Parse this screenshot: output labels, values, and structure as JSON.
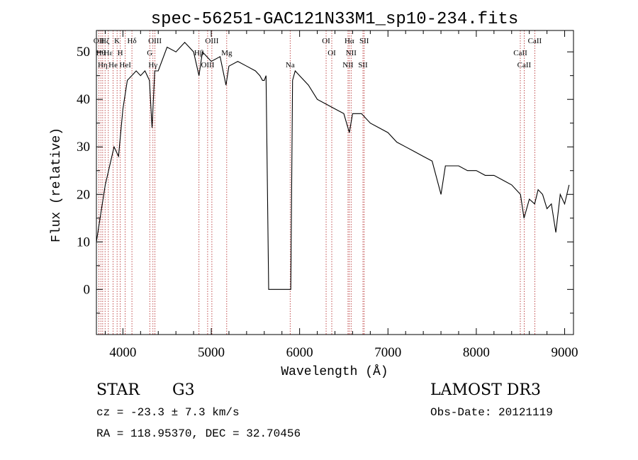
{
  "chart_data": {
    "type": "line",
    "title": "spec-56251-GAC121N33M1_sp10-234.fits",
    "xlabel": "Wavelength (Å)",
    "ylabel": "Flux (relative)",
    "xlim": [
      3700,
      9100
    ],
    "ylim": [
      -9.5,
      54.5
    ],
    "xticks": [
      4000,
      5000,
      6000,
      7000,
      8000,
      9000
    ],
    "yticks": [
      0,
      10,
      20,
      30,
      40,
      50
    ],
    "grid": false,
    "series": [
      {
        "name": "flux",
        "x": [
          3700,
          3750,
          3800,
          3850,
          3900,
          3950,
          4000,
          4050,
          4100,
          4150,
          4200,
          4250,
          4300,
          4330,
          4360,
          4400,
          4500,
          4600,
          4700,
          4800,
          4861,
          4900,
          5000,
          5100,
          5167,
          5200,
          5300,
          5400,
          5500,
          5550,
          5580,
          5600,
          5620,
          5650,
          5900,
          5920,
          5950,
          6000,
          6100,
          6200,
          6300,
          6400,
          6500,
          6563,
          6600,
          6700,
          6800,
          6900,
          7000,
          7100,
          7200,
          7300,
          7400,
          7500,
          7600,
          7650,
          7700,
          7800,
          7900,
          8000,
          8100,
          8200,
          8300,
          8400,
          8500,
          8540,
          8600,
          8660,
          8700,
          8750,
          8800,
          8850,
          8900,
          8950,
          9000,
          9050
        ],
        "values": [
          10,
          16,
          22,
          26,
          30,
          28,
          38,
          44,
          45,
          46,
          45,
          46,
          44,
          34,
          46,
          46,
          51,
          50,
          52,
          50,
          45,
          50,
          48,
          49,
          43,
          47,
          48,
          47,
          46,
          45,
          44,
          44,
          45,
          0,
          0,
          44,
          46,
          45,
          43,
          40,
          39,
          38,
          37,
          33,
          37,
          37,
          35,
          34,
          33,
          31,
          30,
          29,
          28,
          27,
          20,
          26,
          26,
          26,
          25,
          25,
          24,
          24,
          23,
          22,
          20,
          15,
          19,
          18,
          21,
          20,
          17,
          18,
          12,
          20,
          18,
          22
        ]
      }
    ],
    "lines": {
      "x": [
        3727,
        3750,
        3771,
        3798,
        3835,
        3889,
        3934,
        3970,
        4026,
        4102,
        4304,
        4340,
        4363,
        4861,
        4959,
        5007,
        5175,
        5893,
        6300,
        6364,
        6548,
        6563,
        6583,
        6717,
        6731,
        8498,
        8542,
        8662
      ],
      "labels": [
        "OII",
        "Hθ",
        "Hη",
        "Hζ",
        "Hε",
        "He",
        "K",
        "H",
        "HeI",
        "Hδ",
        "G",
        "Hγ",
        "OIII",
        "Hβ",
        "OIII",
        "OIII",
        "Mg",
        "Na",
        "OI",
        "OI",
        "NII",
        "Hα",
        "NII",
        "SII",
        "SII",
        "CaII",
        "CaII",
        "CaII"
      ]
    }
  },
  "info": {
    "object_class": "STAR",
    "subclass": "G3",
    "survey": "LAMOST DR3",
    "redshift": "cz = -23.3 ± 7.3 km/s",
    "obs_date": "Obs-Date: 20121119",
    "coordinates": "RA = 118.95370, DEC =  32.70456"
  }
}
